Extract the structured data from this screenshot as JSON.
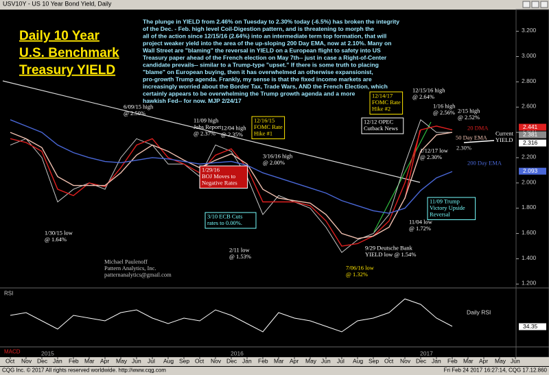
{
  "window": {
    "title": "USV10Y - US 10 Year Bond Yield, Daily",
    "footer_left": "CQG Inc. © 2017 All rights reserved worldwide. http://www.cqg.com",
    "footer_right": "Fri Feb 24 2017 16:27:14, CQG 17.12.860"
  },
  "headline": [
    "Daily 10 Year",
    "U.S. Benchmark",
    "Treasury YIELD"
  ],
  "commentary": [
    "The plunge in YIELD from 2.46% on Tuesday to 2.30% today (-6.5%) has broken the integrity",
    "of the Dec. - Feb. high level Coil-Digestion pattern, and is threatening to morph the",
    "all of the action since 12/15/16 (2.64%) into an intermediate term top formation, that will",
    "project weaker yield into the area of the up-sloping 200 Day EMA, now at 2.10%. Many on",
    "Wall Street are \"blaming\" the reversal in YIELD on a European flight to safety into US",
    "Treasury paper ahead of the French election on May 7th-- just in case a Right-of-Center",
    "candidate prevails-- similar to a Trump-type \"upset.\" If there is some truth to placing",
    "\"blame\" on European buying, then it has overwhelmed an otherwise expansionist,",
    "pro-growth Trump agenda. Frankly, my sense is that the fixed income markets are",
    "increasingly worried about the Border Tax, Trade Wars, AND the French Election, which",
    "certainly appears to be overwhelming the Trump growth agenda and a more",
    "hawkish Fed-- for now.  MJP 2/24/17"
  ],
  "annotations": [
    {
      "lines": [
        "6/09/15 high",
        "@ 2.50%"
      ]
    },
    {
      "lines": [
        "11/09 high",
        "Jobs Report",
        "@ 2.37%"
      ]
    },
    {
      "lines": [
        "12/04 high",
        "@ 2.35%"
      ]
    },
    {
      "lines": [
        "12/16/15",
        "FOMC Rate",
        "Hike #1"
      ]
    },
    {
      "lines": [
        "1/29/16",
        "BOJ Moves to",
        "Negative Rates"
      ]
    },
    {
      "lines": [
        "3/16/16 high",
        "@ 2.00%"
      ]
    },
    {
      "lines": [
        "3/10 ECB Cuts",
        "rates to 0.00%."
      ]
    },
    {
      "lines": [
        "1/30/15 low",
        "@ 1.64%"
      ]
    },
    {
      "lines": [
        "2/11 low",
        "@ 1.53%"
      ]
    },
    {
      "lines": [
        "7/06/16 low",
        "@ 1.32%"
      ]
    },
    {
      "lines": [
        "9/29 Deutsche Bank",
        "YIELD low @ 1.54%"
      ]
    },
    {
      "lines": [
        "11/04 low",
        "@ 1.72%"
      ]
    },
    {
      "lines": [
        "11/09 Trump",
        "Victory Upside",
        "Reversal"
      ]
    },
    {
      "lines": [
        "12/14/17",
        "FOMC Rate",
        "Hike #2"
      ]
    },
    {
      "lines": [
        "12/12 OPEC",
        "Cutback News"
      ]
    },
    {
      "lines": [
        "12/15/16 high",
        "@ 2.64%"
      ]
    },
    {
      "lines": [
        "1/16 high",
        "@ 2.56%"
      ]
    },
    {
      "lines": [
        "2/15 high",
        "@ 2.52%"
      ]
    },
    {
      "lines": [
        "1/12/17 low",
        "@ 2.30%"
      ]
    },
    {
      "lines": [
        "Current",
        "YIELD"
      ]
    },
    {
      "lines": [
        "2.30%"
      ]
    },
    {
      "lines": [
        "Michael Paulenoff",
        "Pattern Analytics, Inc.",
        "patternanalytics@gmail.com"
      ]
    }
  ],
  "macd_label": "MACD",
  "years": [
    "2015",
    "2016",
    "2017"
  ],
  "chart_data": [
    {
      "type": "line",
      "categories": [
        "Oct",
        "Nov",
        "Dec",
        "Jan",
        "Feb",
        "Mar",
        "Apr",
        "May",
        "Jun",
        "Jul",
        "Aug",
        "Sep",
        "Oct",
        "Nov",
        "Dec",
        "Jan",
        "Feb",
        "Mar",
        "Apr",
        "May",
        "Jun",
        "Jul",
        "Aug",
        "Sep",
        "Oct",
        "Nov",
        "Dec",
        "Jan",
        "Feb",
        "Mar",
        "Apr",
        "May",
        "Jun"
      ],
      "series": [
        {
          "color": "#c8c8c8",
          "values": [
            2.3,
            2.35,
            2.2,
            1.85,
            1.95,
            2.0,
            1.95,
            2.2,
            2.35,
            2.3,
            2.15,
            2.15,
            2.05,
            2.3,
            2.25,
            2.05,
            1.75,
            1.9,
            1.85,
            1.8,
            1.65,
            1.45,
            1.55,
            1.6,
            1.75,
            2.15,
            2.5,
            2.4,
            2.4,
            null,
            null,
            null,
            null
          ]
        },
        {
          "name": "20 DMA",
          "color": "#e02020",
          "values": [
            2.35,
            2.32,
            2.25,
            1.95,
            1.9,
            2.0,
            1.97,
            2.12,
            2.3,
            2.35,
            2.2,
            2.15,
            2.08,
            2.22,
            2.27,
            2.12,
            1.85,
            1.85,
            1.85,
            1.82,
            1.7,
            1.5,
            1.52,
            1.58,
            1.7,
            2.0,
            2.42,
            2.45,
            2.42,
            null,
            null,
            null,
            null
          ]
        },
        {
          "name": "50 Day EMA",
          "color": "#f0c0b0",
          "values": [
            2.4,
            2.35,
            2.28,
            2.05,
            1.98,
            1.98,
            1.98,
            2.08,
            2.22,
            2.3,
            2.25,
            2.18,
            2.12,
            2.18,
            2.23,
            2.15,
            1.95,
            1.88,
            1.86,
            1.84,
            1.75,
            1.6,
            1.56,
            1.58,
            1.65,
            1.88,
            2.25,
            2.38,
            2.4,
            null,
            null,
            null,
            null
          ]
        },
        {
          "name": "200 Day EMA",
          "color": "#4a68d8",
          "values": [
            2.5,
            2.45,
            2.4,
            2.3,
            2.24,
            2.2,
            2.17,
            2.16,
            2.18,
            2.2,
            2.19,
            2.17,
            2.15,
            2.16,
            2.17,
            2.14,
            2.08,
            2.04,
            2.0,
            1.96,
            1.92,
            1.86,
            1.82,
            1.78,
            1.76,
            1.8,
            1.94,
            2.04,
            2.09,
            null,
            null,
            null,
            null
          ]
        }
      ],
      "ylim": [
        1.18,
        3.35
      ],
      "yticks": [
        {
          "value": 3.2,
          "label": "3.200"
        },
        {
          "value": 3.0,
          "label": "3.000"
        },
        {
          "value": 2.8,
          "label": "2.800"
        },
        {
          "value": 2.6,
          "label": "2.600"
        },
        {
          "value": 2.4,
          "label": "2.400"
        },
        {
          "value": 2.2,
          "label": "2.200"
        },
        {
          "value": 2.0,
          "label": "2.000"
        },
        {
          "value": 1.8,
          "label": "1.800"
        },
        {
          "value": 1.6,
          "label": "1.600"
        },
        {
          "value": 1.4,
          "label": "1.400"
        },
        {
          "value": 1.2,
          "label": "1.200"
        }
      ],
      "price_tags": [
        {
          "value": 2.441,
          "label": "2.441",
          "color": "#e02020"
        },
        {
          "value": 2.381,
          "label": "2.381",
          "color": "#8a8a8a"
        },
        {
          "value": 2.316,
          "label": "2.316",
          "color": "#ffffff"
        },
        {
          "value": 2.093,
          "label": "2.093",
          "color": "#4a68d8"
        }
      ]
    },
    {
      "type": "line",
      "title": "RSI",
      "subtitle": "Daily RSI",
      "series": [
        {
          "color": "#ffffff",
          "values": [
            55,
            60,
            45,
            30,
            55,
            50,
            45,
            60,
            65,
            50,
            40,
            50,
            45,
            65,
            55,
            40,
            25,
            60,
            50,
            45,
            35,
            25,
            45,
            50,
            60,
            85,
            75,
            50,
            35,
            null,
            null,
            null,
            null
          ]
        }
      ],
      "ylim": [
        0,
        100
      ],
      "price_tags": [
        {
          "value": 34.35,
          "label": "34.35",
          "color": "#ffffff"
        }
      ]
    }
  ]
}
